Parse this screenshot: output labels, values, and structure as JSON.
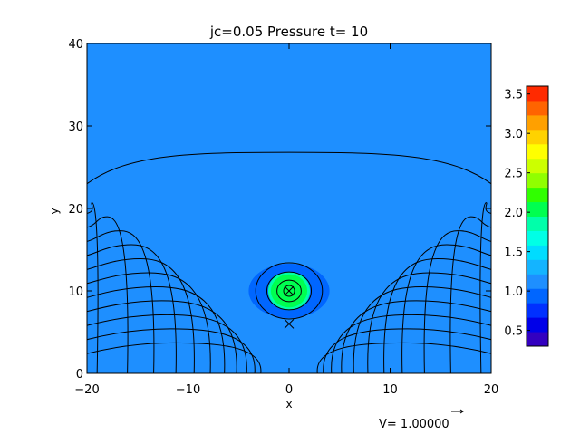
{
  "chart_data": {
    "type": "heatmap",
    "title": "jc=0.05 Pressure t= 10",
    "xlabel": "x",
    "ylabel": "y",
    "xlim": [
      -20,
      20
    ],
    "ylim": [
      0,
      40
    ],
    "x_ticks": [
      -20,
      -10,
      0,
      10,
      20
    ],
    "x_tick_labels": [
      "−20",
      "−10",
      "0",
      "10",
      "20"
    ],
    "y_ticks": [
      0,
      10,
      20,
      30,
      40
    ],
    "y_tick_labels": [
      "0",
      "10",
      "20",
      "30",
      "40"
    ],
    "background_pressure": 1.0,
    "pressure_blob": {
      "center": [
        0,
        10
      ],
      "peak_value": 2.2,
      "halo_value": 0.85,
      "halo_semi_axes": [
        4,
        3.3
      ],
      "core_semi_axes": [
        1.8,
        2.0
      ]
    },
    "field_lines": {
      "description_source": "contour lines of magnetic flux drawn in black",
      "top_line_y": 26.8,
      "left_family_x_foot": [
        -2.8,
        -3.4,
        -4.2,
        -5.2,
        -6.4,
        -7.8,
        -9.4,
        -11.2,
        -13.4,
        -16.0,
        -19.0
      ],
      "right_family_x_foot": [
        2.8,
        3.4,
        4.2,
        5.2,
        6.4,
        7.8,
        9.4,
        11.2,
        13.4,
        16.0,
        19.0
      ]
    },
    "markers": [
      {
        "symbol": "circle-x",
        "x": 0,
        "y": 10
      },
      {
        "symbol": "x",
        "x": 0,
        "y": 6
      }
    ],
    "colorbar": {
      "min": 0.3,
      "max": 3.6,
      "ticks": [
        0.5,
        1.0,
        1.5,
        2.0,
        2.5,
        3.0,
        3.5
      ],
      "tick_labels": [
        "0.5",
        "1.0",
        "1.5",
        "2.0",
        "2.5",
        "3.0",
        "3.5"
      ],
      "colors": [
        "#3300c0",
        "#0000e8",
        "#0030ff",
        "#0066ff",
        "#1e8fff",
        "#14b4ff",
        "#00dcff",
        "#00ffe6",
        "#00ffaa",
        "#00ff50",
        "#30ff00",
        "#90ff00",
        "#ccff00",
        "#ffff00",
        "#ffd200",
        "#ffa000",
        "#ff6400",
        "#ff2a00"
      ]
    },
    "vector_label": "V= 1.00000",
    "colors": {
      "background_field": "#1e8fff",
      "halo": "#0066ff",
      "core": "#00ff50",
      "core_edge": "#00ffaa",
      "lines": "#000000"
    }
  }
}
